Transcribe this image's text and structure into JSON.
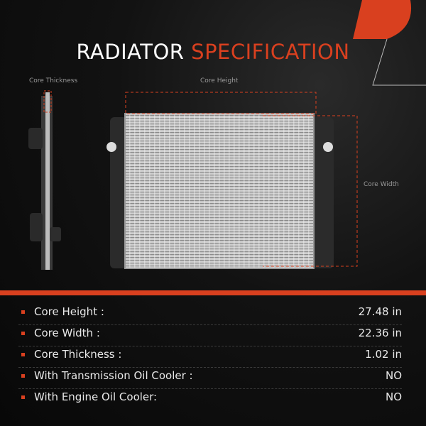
{
  "title": {
    "main": "RADIATOR",
    "accent": "SPECIFICATION"
  },
  "dimension_labels": {
    "thickness": "Core Thickness",
    "height": "Core Height",
    "width": "Core Width"
  },
  "specs": [
    {
      "label": "Core Height :",
      "value": "27.48 in"
    },
    {
      "label": "Core Width :",
      "value": "22.36 in"
    },
    {
      "label": "Core Thickness :",
      "value": "1.02 in"
    },
    {
      "label": "With Transmission Oil Cooler :",
      "value": "NO"
    },
    {
      "label": "With Engine Oil Cooler:",
      "value": "NO"
    }
  ],
  "colors": {
    "accent": "#d9401f",
    "background": "#0b0b0b"
  }
}
